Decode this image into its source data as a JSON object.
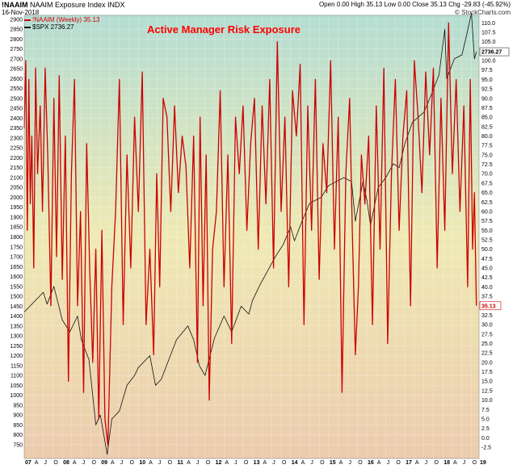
{
  "header": {
    "symbol": "!NAAIM",
    "symbol_desc": "NAAIM Exposure Index  INDX",
    "date": "16-Nov-2018",
    "ohlc": "Open 0.00  High 35.13  Low 0.00  Close 35.13  Chg  -29.83 (-45.92%)",
    "credit": "© StockCharts.com"
  },
  "legend": {
    "naaim": "!NAAIM (Weekly) 35.13",
    "spx": "$SPX 2736.27"
  },
  "annotation": "Active Manager Risk Exposure",
  "colors": {
    "naaim": "#cc0000",
    "spx": "#111111",
    "bg_top": "#b4ddd2",
    "bg_mid": "#efe9b4",
    "bg_bottom": "#ecccae"
  },
  "chart_data": {
    "type": "line",
    "x_tick_labels": [
      "07",
      "A",
      "J",
      "O",
      "08",
      "A",
      "J",
      "O",
      "09",
      "A",
      "J",
      "O",
      "10",
      "A",
      "J",
      "O",
      "11",
      "A",
      "J",
      "O",
      "12",
      "A",
      "J",
      "O",
      "13",
      "A",
      "J",
      "O",
      "14",
      "A",
      "J",
      "O",
      "15",
      "A",
      "J",
      "O",
      "16",
      "A",
      "J",
      "O",
      "17",
      "A",
      "J",
      "O",
      "18",
      "A",
      "J",
      "O",
      "19"
    ],
    "left_axis": {
      "label": "$SPX",
      "ylim": [
        680,
        2920
      ],
      "ticks": [
        750,
        800,
        850,
        900,
        950,
        1000,
        1050,
        1100,
        1150,
        1200,
        1250,
        1300,
        1350,
        1400,
        1450,
        1500,
        1550,
        1600,
        1650,
        1700,
        1750,
        1800,
        1850,
        1900,
        1950,
        2000,
        2050,
        2100,
        2150,
        2200,
        2250,
        2300,
        2350,
        2400,
        2450,
        2500,
        2550,
        2600,
        2650,
        2700,
        2750,
        2800,
        2850,
        2900
      ]
    },
    "right_axis": {
      "label": "!NAAIM",
      "ylim": [
        -5.5,
        112
      ],
      "ticks": [
        -2.5,
        0.0,
        2.5,
        5.0,
        7.5,
        10.0,
        12.5,
        15.0,
        17.5,
        20.0,
        22.5,
        25.0,
        27.5,
        30.0,
        32.5,
        35.0,
        37.5,
        40.0,
        42.5,
        45.0,
        47.5,
        50.0,
        52.5,
        55.0,
        57.5,
        60.0,
        62.5,
        65.0,
        67.5,
        70.0,
        72.5,
        75.0,
        77.5,
        80.0,
        82.5,
        85.0,
        87.5,
        90.0,
        92.5,
        95.0,
        97.5,
        100.0,
        102.5,
        105.0,
        107.5,
        110.0
      ]
    },
    "last_value_tags": {
      "spx": "2736.27",
      "naaim": "35.13"
    },
    "series": [
      {
        "name": "$SPX",
        "axis": "left",
        "x": [
          2007.0,
          2007.25,
          2007.5,
          2007.6,
          2007.78,
          2008.0,
          2008.2,
          2008.4,
          2008.5,
          2008.7,
          2008.88,
          2009.0,
          2009.18,
          2009.3,
          2009.5,
          2009.7,
          2009.9,
          2010.0,
          2010.3,
          2010.45,
          2010.6,
          2010.8,
          2011.0,
          2011.3,
          2011.45,
          2011.6,
          2011.75,
          2012.0,
          2012.25,
          2012.45,
          2012.7,
          2012.9,
          2013.0,
          2013.2,
          2013.4,
          2013.6,
          2013.8,
          2014.0,
          2014.1,
          2014.3,
          2014.5,
          2014.8,
          2015.0,
          2015.4,
          2015.6,
          2015.7,
          2015.9,
          2016.0,
          2016.1,
          2016.3,
          2016.5,
          2016.7,
          2016.85,
          2017.0,
          2017.2,
          2017.5,
          2017.7,
          2017.9,
          2018.05,
          2018.1,
          2018.3,
          2018.5,
          2018.6,
          2018.75,
          2018.83,
          2018.88
        ],
        "values": [
          1420,
          1470,
          1520,
          1460,
          1550,
          1380,
          1320,
          1400,
          1280,
          1180,
          850,
          900,
          700,
          880,
          920,
          1050,
          1100,
          1140,
          1200,
          1050,
          1080,
          1180,
          1280,
          1350,
          1280,
          1150,
          1100,
          1290,
          1400,
          1320,
          1450,
          1410,
          1480,
          1560,
          1630,
          1700,
          1760,
          1850,
          1780,
          1880,
          1970,
          2000,
          2060,
          2100,
          2080,
          1880,
          2080,
          1990,
          1860,
          2050,
          2100,
          2170,
          2150,
          2270,
          2380,
          2430,
          2520,
          2620,
          2850,
          2600,
          2700,
          2720,
          2800,
          2930,
          2700,
          2736
        ]
      },
      {
        "name": "!NAAIM",
        "axis": "right",
        "x": [
          2007.0,
          2007.04,
          2007.08,
          2007.12,
          2007.16,
          2007.2,
          2007.25,
          2007.3,
          2007.35,
          2007.42,
          2007.48,
          2007.55,
          2007.62,
          2007.7,
          2007.78,
          2007.85,
          2007.92,
          2008.0,
          2008.08,
          2008.16,
          2008.24,
          2008.32,
          2008.4,
          2008.48,
          2008.56,
          2008.64,
          2008.72,
          2008.8,
          2008.88,
          2008.96,
          2009.04,
          2009.12,
          2009.2,
          2009.3,
          2009.4,
          2009.5,
          2009.6,
          2009.7,
          2009.8,
          2009.9,
          2010.0,
          2010.1,
          2010.2,
          2010.3,
          2010.4,
          2010.48,
          2010.56,
          2010.65,
          2010.75,
          2010.85,
          2010.95,
          2011.05,
          2011.15,
          2011.25,
          2011.35,
          2011.45,
          2011.55,
          2011.62,
          2011.7,
          2011.78,
          2011.86,
          2011.95,
          2012.05,
          2012.15,
          2012.25,
          2012.35,
          2012.45,
          2012.55,
          2012.65,
          2012.75,
          2012.85,
          2012.95,
          2013.05,
          2013.15,
          2013.25,
          2013.35,
          2013.45,
          2013.55,
          2013.65,
          2013.75,
          2013.85,
          2013.95,
          2014.05,
          2014.15,
          2014.25,
          2014.35,
          2014.45,
          2014.55,
          2014.65,
          2014.75,
          2014.85,
          2014.95,
          2015.05,
          2015.15,
          2015.25,
          2015.35,
          2015.45,
          2015.55,
          2015.62,
          2015.7,
          2015.78,
          2015.86,
          2015.95,
          2016.05,
          2016.15,
          2016.25,
          2016.35,
          2016.45,
          2016.55,
          2016.65,
          2016.75,
          2016.85,
          2016.95,
          2017.05,
          2017.15,
          2017.25,
          2017.35,
          2017.45,
          2017.55,
          2017.65,
          2017.75,
          2017.85,
          2017.95,
          2018.05,
          2018.15,
          2018.25,
          2018.35,
          2018.45,
          2018.55,
          2018.65,
          2018.72,
          2018.78,
          2018.83,
          2018.88
        ],
        "values": [
          82,
          100,
          55,
          95,
          62,
          80,
          45,
          98,
          70,
          88,
          60,
          98,
          74,
          35,
          90,
          48,
          96,
          42,
          80,
          15,
          70,
          95,
          35,
          60,
          12,
          78,
          45,
          20,
          50,
          5,
          55,
          5,
          -2,
          40,
          60,
          95,
          30,
          75,
          45,
          85,
          60,
          97,
          30,
          50,
          22,
          70,
          40,
          90,
          85,
          60,
          88,
          65,
          80,
          72,
          45,
          80,
          20,
          85,
          35,
          75,
          10,
          50,
          60,
          92,
          40,
          75,
          25,
          85,
          70,
          88,
          55,
          78,
          90,
          50,
          88,
          62,
          95,
          45,
          105,
          60,
          85,
          40,
          92,
          80,
          99,
          30,
          88,
          55,
          95,
          42,
          78,
          65,
          100,
          50,
          85,
          12,
          70,
          90,
          55,
          22,
          40,
          75,
          62,
          80,
          30,
          88,
          50,
          98,
          25,
          70,
          95,
          55,
          80,
          92,
          35,
          100,
          85,
          65,
          97,
          75,
          98,
          45,
          90,
          55,
          110,
          70,
          95,
          60,
          88,
          40,
          95,
          50,
          65,
          35
        ]
      }
    ]
  }
}
